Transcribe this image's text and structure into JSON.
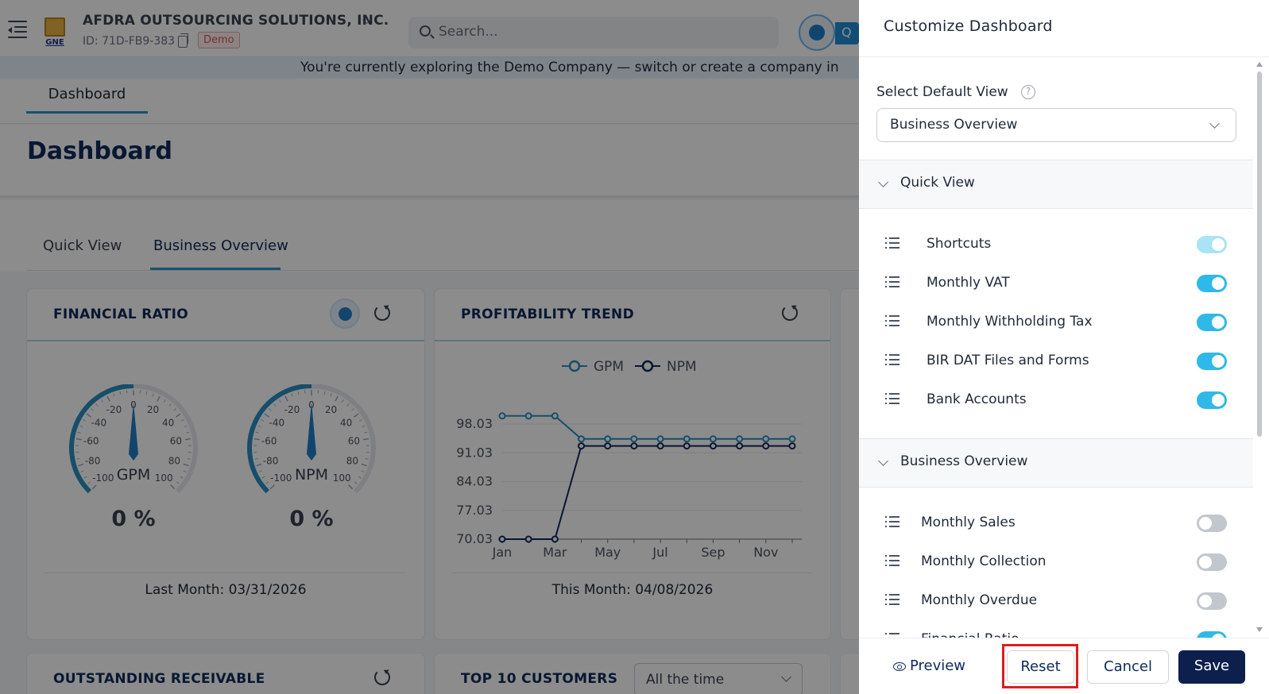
{
  "header": {
    "company_name": "AFDRA OUTSOURCING SOLUTIONS, INC.",
    "company_id": "ID: 71D-FB9-383",
    "demo_badge": "Demo",
    "logo_text": "GNE",
    "search_placeholder": "Search...",
    "ai_tail_label": "Q"
  },
  "banner": {
    "text": "You're currently exploring the Demo Company — switch or create a company in"
  },
  "subnav": {
    "tab": "Dashboard"
  },
  "page": {
    "title": "Dashboard"
  },
  "tabs": [
    {
      "label": "Quick View",
      "active": false
    },
    {
      "label": "Business Overview",
      "active": true
    }
  ],
  "cards": {
    "financial_ratio": {
      "title": "FINANCIAL RATIO",
      "gauges": [
        {
          "name": "GPM",
          "value": "0 %",
          "ticks": [
            "0",
            "20",
            "40",
            "60",
            "80",
            "100",
            "-20",
            "-40",
            "-60",
            "-80",
            "-100"
          ]
        },
        {
          "name": "NPM",
          "value": "0 %",
          "ticks": [
            "0",
            "20",
            "40",
            "60",
            "80",
            "100",
            "-20",
            "-40",
            "-60",
            "-80",
            "-100"
          ]
        }
      ],
      "footer": "Last Month: 03/31/2026"
    },
    "profitability": {
      "title": "PROFITABILITY TREND",
      "footer": "This Month: 04/08/2026"
    },
    "receivable": {
      "title": "OUTSTANDING RECEIVABLE"
    },
    "customers": {
      "title": "TOP 10 CUSTOMERS",
      "filter_value": "All the time"
    }
  },
  "chart_data": {
    "type": "line",
    "x": [
      "Jan",
      "Feb",
      "Mar",
      "Apr",
      "May",
      "Jun",
      "Jul",
      "Aug",
      "Sep",
      "Oct",
      "Nov",
      "Dec"
    ],
    "x_tick_labels": [
      "Jan",
      "Mar",
      "May",
      "Jul",
      "Sep",
      "Nov"
    ],
    "y_tick_labels": [
      "98.03",
      "91.03",
      "84.03",
      "77.03",
      "70.03"
    ],
    "ylim": [
      70.03,
      98.03
    ],
    "series": [
      {
        "name": "GPM",
        "color": "#2a8fc0",
        "values": [
          100,
          100,
          100,
          94.4,
          94.4,
          94.4,
          94.4,
          94.4,
          94.4,
          94.4,
          94.4,
          94.4
        ]
      },
      {
        "name": "NPM",
        "color": "#0f2a5c",
        "values": [
          70.03,
          70.03,
          70.03,
          92.7,
          92.7,
          92.7,
          92.7,
          92.7,
          92.7,
          92.7,
          92.7,
          92.7
        ]
      }
    ],
    "legend": "top",
    "grid": true
  },
  "drawer": {
    "title": "Customize Dashboard",
    "default_view_label": "Select Default View",
    "default_view_value": "Business Overview",
    "sections": [
      {
        "label": "Quick View",
        "items": [
          {
            "label": "Shortcuts",
            "state": "dim"
          },
          {
            "label": "Monthly VAT",
            "state": "on"
          },
          {
            "label": "Monthly Withholding Tax",
            "state": "on"
          },
          {
            "label": "BIR DAT Files and Forms",
            "state": "on"
          },
          {
            "label": "Bank Accounts",
            "state": "on"
          }
        ]
      },
      {
        "label": "Business Overview",
        "items": [
          {
            "label": "Monthly Sales",
            "state": "off"
          },
          {
            "label": "Monthly Collection",
            "state": "off"
          },
          {
            "label": "Monthly Overdue",
            "state": "off"
          },
          {
            "label": "Financial Ratio",
            "state": "on"
          }
        ]
      }
    ],
    "buttons": {
      "preview": "Preview",
      "reset": "Reset",
      "cancel": "Cancel",
      "save": "Save"
    }
  }
}
